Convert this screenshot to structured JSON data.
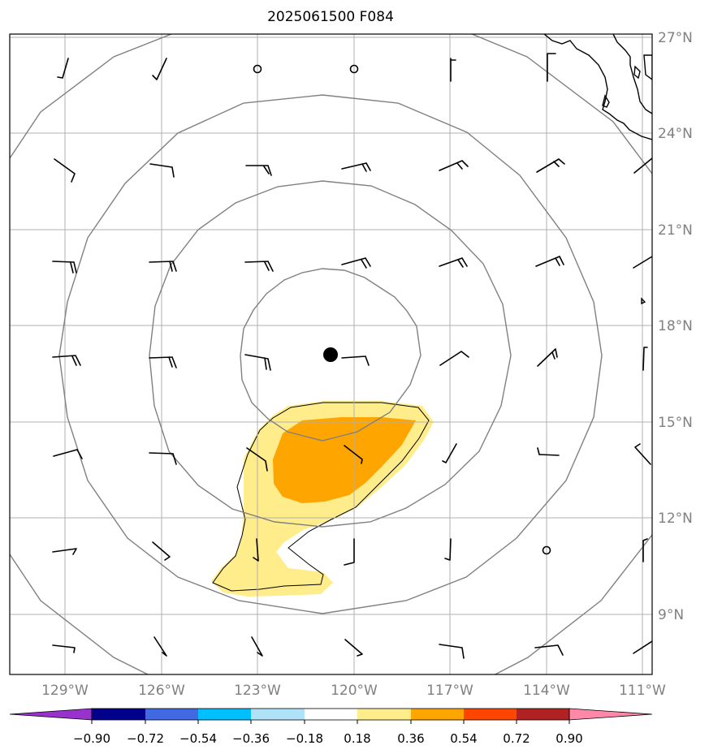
{
  "title": "2025061500 F084",
  "lat_labels": [
    "27°N",
    "24°N",
    "21°N",
    "18°N",
    "15°N",
    "12°N",
    "9°N"
  ],
  "lon_labels": [
    "129°W",
    "126°W",
    "123°W",
    "120°W",
    "117°W",
    "114°W",
    "111°W"
  ],
  "colorbar": {
    "ticks": [
      "−0.90",
      "−0.72",
      "−0.54",
      "−0.36",
      "−0.18",
      "0.18",
      "0.36",
      "0.54",
      "0.72",
      "0.90"
    ],
    "colors": [
      "#9932CC",
      "#00008B",
      "#4169E1",
      "#00BFFF",
      "#B0E2F8",
      "#FFFFFF",
      "#FFEC8B",
      "#FFA500",
      "#FF4500",
      "#B22222",
      "#FF88A8"
    ]
  },
  "colors": {
    "contour": "#808080",
    "grid": "#b0b0b0",
    "fill_light": "#FFEC8B",
    "fill_dark": "#FFA500",
    "coast": "#000000"
  }
}
